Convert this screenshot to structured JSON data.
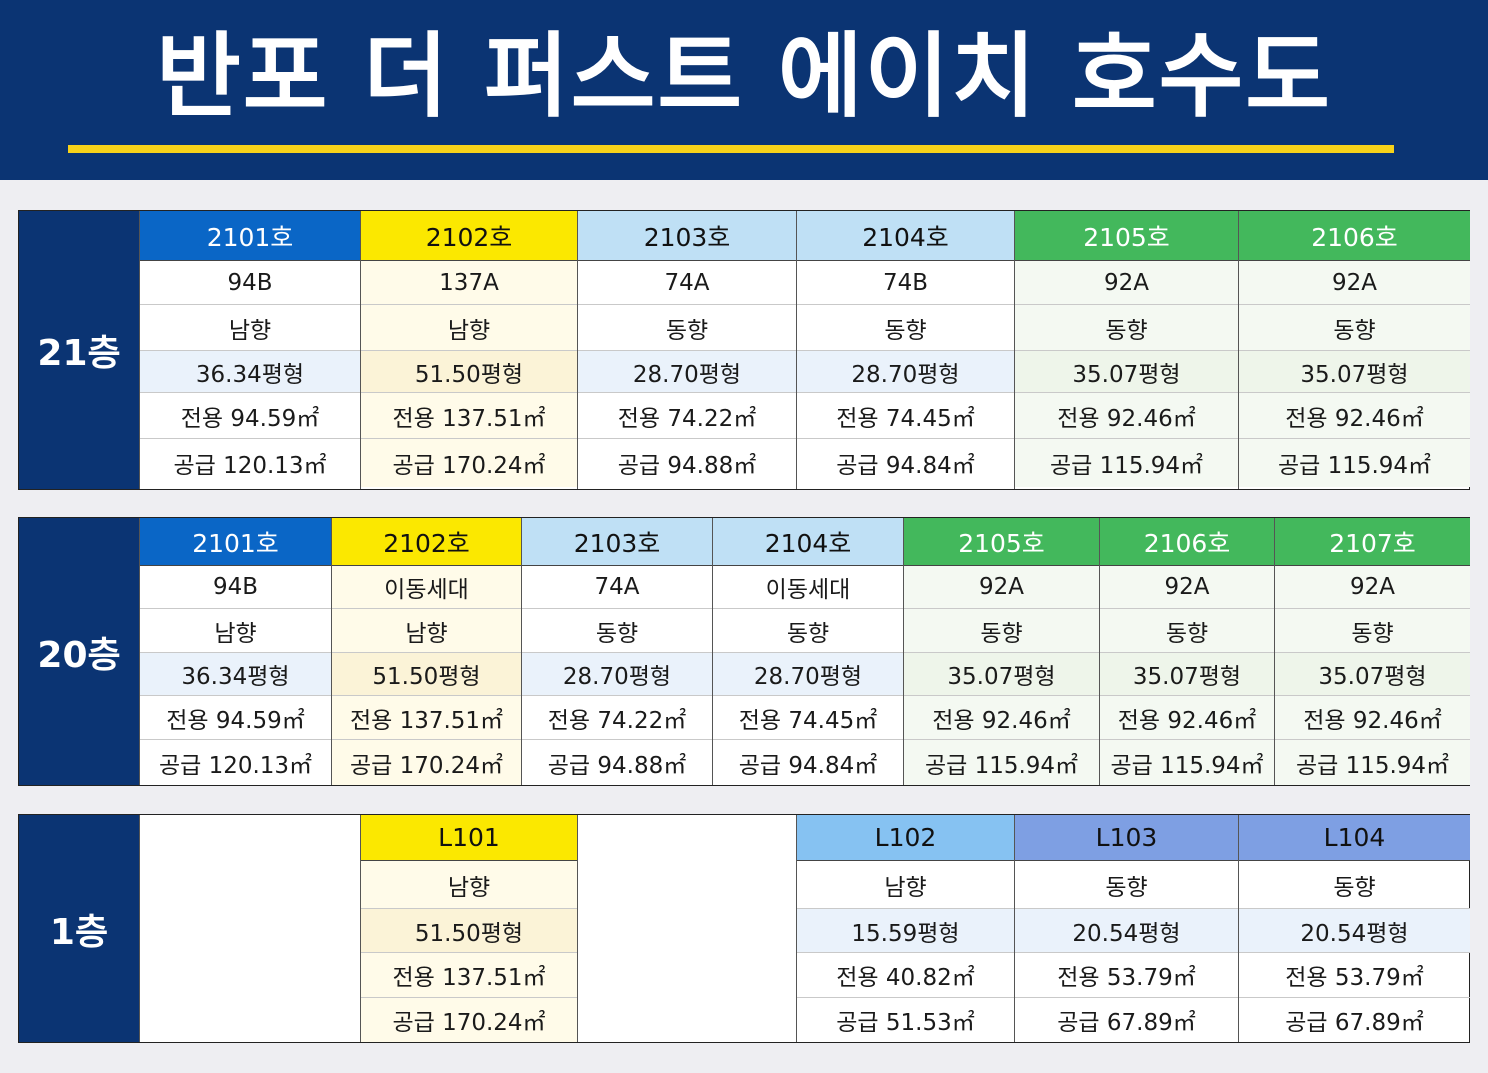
{
  "title": "반포 더 퍼스트 에이치 호수도",
  "colors": {
    "header_bg": "#0b3473",
    "underline": "#f7d21a"
  },
  "floors": [
    {
      "label": "21층",
      "units": [
        {
          "name": "2101호",
          "type": "94B",
          "direction": "남향",
          "pyeong": "36.34평형",
          "exclusive": "전용 94.59㎡",
          "supply": "공급 120.13㎡",
          "color": "blue"
        },
        {
          "name": "2102호",
          "type": "137A",
          "direction": "남향",
          "pyeong": "51.50평형",
          "exclusive": "전용 137.51㎡",
          "supply": "공급 170.24㎡",
          "color": "yellow"
        },
        {
          "name": "2103호",
          "type": "74A",
          "direction": "동향",
          "pyeong": "28.70평형",
          "exclusive": "전용 74.22㎡",
          "supply": "공급 94.88㎡",
          "color": "lightblue"
        },
        {
          "name": "2104호",
          "type": "74B",
          "direction": "동향",
          "pyeong": "28.70평형",
          "exclusive": "전용 74.45㎡",
          "supply": "공급 94.84㎡",
          "color": "lightblue"
        },
        {
          "name": "2105호",
          "type": "92A",
          "direction": "동향",
          "pyeong": "35.07평형",
          "exclusive": "전용 92.46㎡",
          "supply": "공급 115.94㎡",
          "color": "green"
        },
        {
          "name": "2106호",
          "type": "92A",
          "direction": "동향",
          "pyeong": "35.07평형",
          "exclusive": "전용 92.46㎡",
          "supply": "공급 115.94㎡",
          "color": "green"
        }
      ]
    },
    {
      "label": "20층",
      "units": [
        {
          "name": "2101호",
          "type": "94B",
          "direction": "남향",
          "pyeong": "36.34평형",
          "exclusive": "전용 94.59㎡",
          "supply": "공급 120.13㎡",
          "color": "blue"
        },
        {
          "name": "2102호",
          "type": "이동세대",
          "direction": "남향",
          "pyeong": "51.50평형",
          "exclusive": "전용 137.51㎡",
          "supply": "공급 170.24㎡",
          "color": "yellow"
        },
        {
          "name": "2103호",
          "type": "74A",
          "direction": "동향",
          "pyeong": "28.70평형",
          "exclusive": "전용 74.22㎡",
          "supply": "공급 94.88㎡",
          "color": "lightblue"
        },
        {
          "name": "2104호",
          "type": "이동세대",
          "direction": "동향",
          "pyeong": "28.70평형",
          "exclusive": "전용 74.45㎡",
          "supply": "공급 94.84㎡",
          "color": "lightblue"
        },
        {
          "name": "2105호",
          "type": "92A",
          "direction": "동향",
          "pyeong": "35.07평형",
          "exclusive": "전용 92.46㎡",
          "supply": "공급 115.94㎡",
          "color": "green"
        },
        {
          "name": "2106호",
          "type": "92A",
          "direction": "동향",
          "pyeong": "35.07평형",
          "exclusive": "전용 92.46㎡",
          "supply": "공급 115.94㎡",
          "color": "green"
        },
        {
          "name": "2107호",
          "type": "92A",
          "direction": "동향",
          "pyeong": "35.07평형",
          "exclusive": "전용 92.46㎡",
          "supply": "공급 115.94㎡",
          "color": "green"
        }
      ]
    },
    {
      "label": "1층",
      "units": [
        {
          "name": "",
          "empty": true
        },
        {
          "name": "L101",
          "direction": "남향",
          "pyeong": "51.50평형",
          "exclusive": "전용 137.51㎡",
          "supply": "공급 170.24㎡",
          "color": "yellow"
        },
        {
          "name": "",
          "empty": true
        },
        {
          "name": "L102",
          "direction": "남향",
          "pyeong": "15.59평형",
          "exclusive": "전용 40.82㎡",
          "supply": "공급 51.53㎡",
          "color": "skyblue"
        },
        {
          "name": "L103",
          "direction": "동향",
          "pyeong": "20.54평형",
          "exclusive": "전용 53.79㎡",
          "supply": "공급 67.89㎡",
          "color": "periwinkle"
        },
        {
          "name": "L104",
          "direction": "동향",
          "pyeong": "20.54평형",
          "exclusive": "전용 53.79㎡",
          "supply": "공급 67.89㎡",
          "color": "periwinkle"
        }
      ]
    }
  ]
}
